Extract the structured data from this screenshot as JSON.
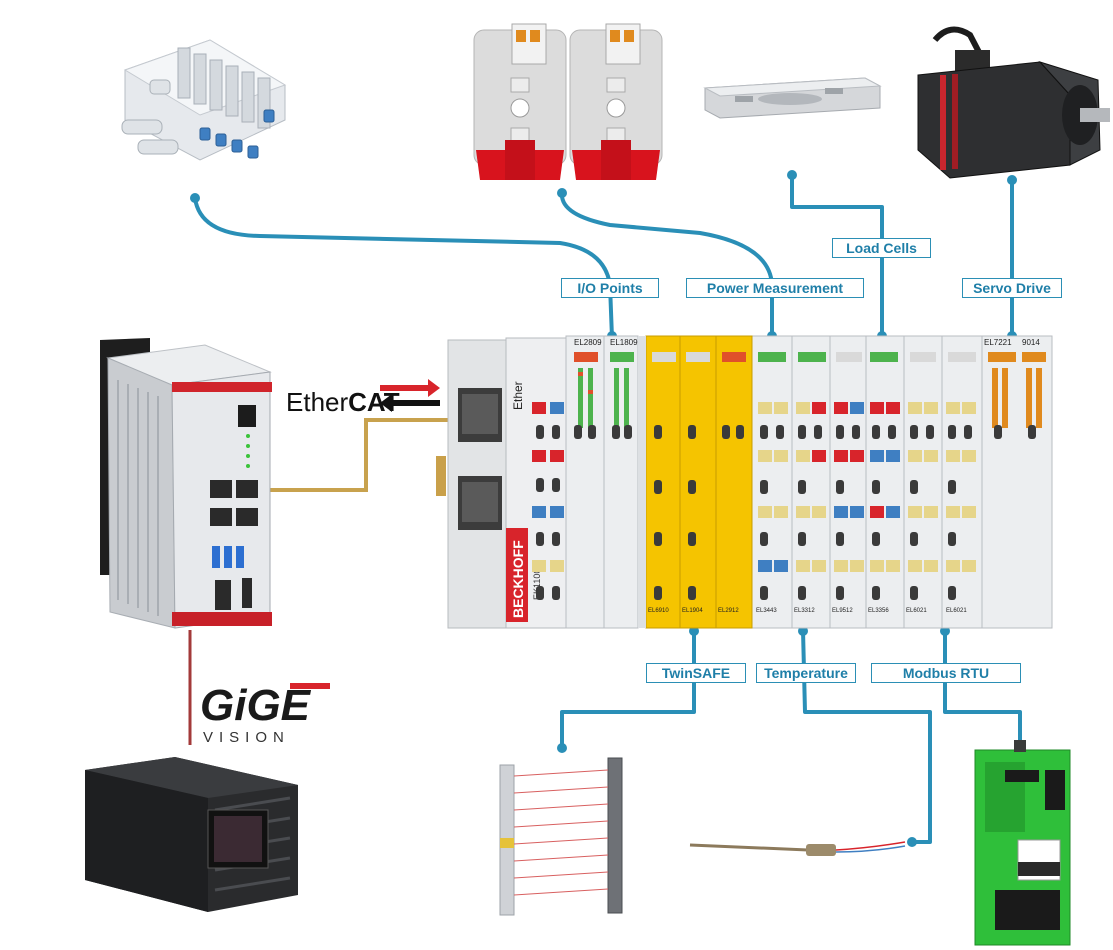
{
  "labels": {
    "io_points": "I/O Points",
    "power_measurement": "Power Measurement",
    "load_cells": "Load Cells",
    "servo_drive": "Servo Drive",
    "twinsafe": "TwinSAFE",
    "temperature": "Temperature",
    "modbus_rtu": "Modbus RTU"
  },
  "logos": {
    "ethercat_prefix": "Ether",
    "ethercat_suffix": "CAT",
    "gige": "GiGE",
    "vision": "VISION",
    "beckhoff": "BECKHOFF",
    "coupler_model": "EK1100"
  },
  "terminals": {
    "top_labels": [
      "EL2809",
      "EL1809",
      "EL7221",
      "9014"
    ],
    "bottom_labels": [
      "EL6910",
      "EL1904",
      "EL2912",
      "EL3443",
      "EL3312",
      "EL9512",
      "EL3356",
      "EL6021",
      "EL6021"
    ]
  },
  "colors": {
    "wire_blue": "#2a8fb7",
    "ethercat_wire": "#c8a24e",
    "gige_wire": "#a33a3a",
    "safety_yellow": "#f5c400",
    "beckhoff_red": "#d8242b",
    "drive_green": "#2fbf3a"
  }
}
